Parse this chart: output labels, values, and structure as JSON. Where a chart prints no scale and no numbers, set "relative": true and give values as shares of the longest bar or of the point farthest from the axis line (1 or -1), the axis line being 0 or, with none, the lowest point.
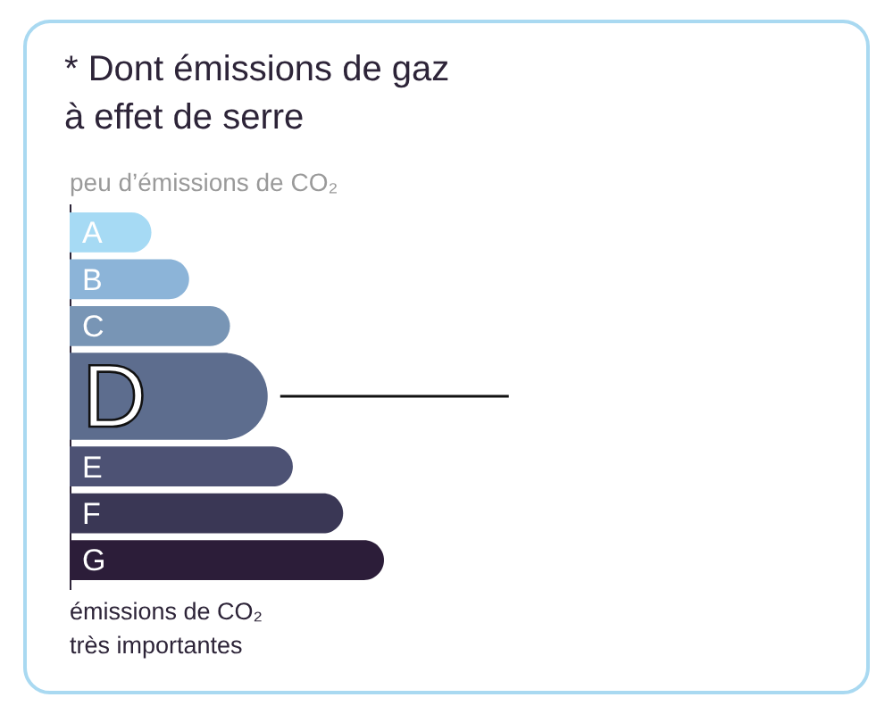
{
  "chart_data": {
    "type": "bar",
    "orientation": "horizontal",
    "relative": true,
    "title": "* Dont émissions de gaz\nà effet de serre",
    "categories": [
      "A",
      "B",
      "C",
      "D",
      "E",
      "F",
      "G"
    ],
    "values": [
      0.26,
      0.38,
      0.51,
      0.63,
      0.71,
      0.87,
      1
    ],
    "colors": [
      "#a6daf4",
      "#8cb4d8",
      "#7895b5",
      "#5d6d8e",
      "#4d5274",
      "#3a3755",
      "#2c1d39"
    ],
    "needle": "D",
    "annotations": [
      "peu d’émissions de CO₂",
      "émissions de CO₂\ntrès importantes"
    ]
  }
}
